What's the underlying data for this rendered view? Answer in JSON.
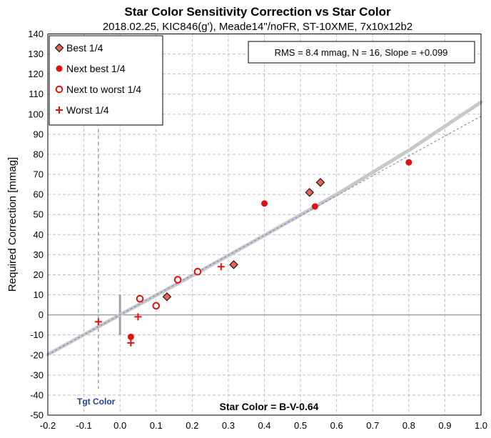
{
  "chart_data": {
    "type": "scatter",
    "title": "Star Color Sensitivity Correction vs Star Color",
    "subtitle": "2018.02.25, KIC846(g'), Meade14\"/noFR, ST-10XME, 7x10x12b2",
    "xlabel": "Star Color = B-V-0.64",
    "ylabel": "Required Correction [mmag]",
    "xlim": [
      -0.2,
      1.0
    ],
    "ylim": [
      -50,
      140
    ],
    "xticks": [
      "-0.2",
      "-0.1",
      "0.0",
      "0.1",
      "0.2",
      "0.3",
      "0.4",
      "0.5",
      "0.6",
      "0.7",
      "0.8",
      "0.9",
      "1.0"
    ],
    "yticks": [
      "-50",
      "-40",
      "-30",
      "-20",
      "-10",
      "0",
      "10",
      "20",
      "30",
      "40",
      "50",
      "60",
      "70",
      "80",
      "90",
      "100",
      "110",
      "120",
      "130",
      "140"
    ],
    "grid": true,
    "legend_position": "top-left",
    "stats_text": "RMS = 8.4 mmag, N = 16, Slope = +0.099",
    "target_label": "Tgt Color",
    "target_color_x": -0.06,
    "series": [
      {
        "name": "Best 1/4",
        "marker": "diamond",
        "color": "#e8625a",
        "points": [
          [
            0.13,
            9
          ],
          [
            0.315,
            25
          ],
          [
            0.525,
            61
          ],
          [
            0.555,
            66
          ]
        ]
      },
      {
        "name": "Next best 1/4",
        "marker": "filled-circle",
        "color": "#e01010",
        "points": [
          [
            0.03,
            -11
          ],
          [
            0.4,
            55.5
          ],
          [
            0.54,
            54
          ],
          [
            0.8,
            76
          ]
        ]
      },
      {
        "name": "Next to worst 1/4",
        "marker": "open-circle",
        "color": "#e01010",
        "points": [
          [
            0.055,
            8
          ],
          [
            0.1,
            4.5
          ],
          [
            0.16,
            17.5
          ],
          [
            0.215,
            21.5
          ]
        ]
      },
      {
        "name": "Worst 1/4",
        "marker": "plus",
        "color": "#e01010",
        "points": [
          [
            -0.06,
            -3.5
          ],
          [
            0.03,
            -14
          ],
          [
            0.05,
            -1
          ],
          [
            0.28,
            24
          ]
        ]
      }
    ],
    "fit_curve": [
      [
        -0.2,
        -19.8
      ],
      [
        0.0,
        0
      ],
      [
        0.2,
        19.5
      ],
      [
        0.4,
        39.6
      ],
      [
        0.6,
        60.0
      ],
      [
        0.8,
        82.0
      ],
      [
        1.0,
        106.0
      ]
    ],
    "linear_fit": [
      [
        -0.2,
        -19.8
      ],
      [
        1.0,
        99.0
      ]
    ]
  }
}
